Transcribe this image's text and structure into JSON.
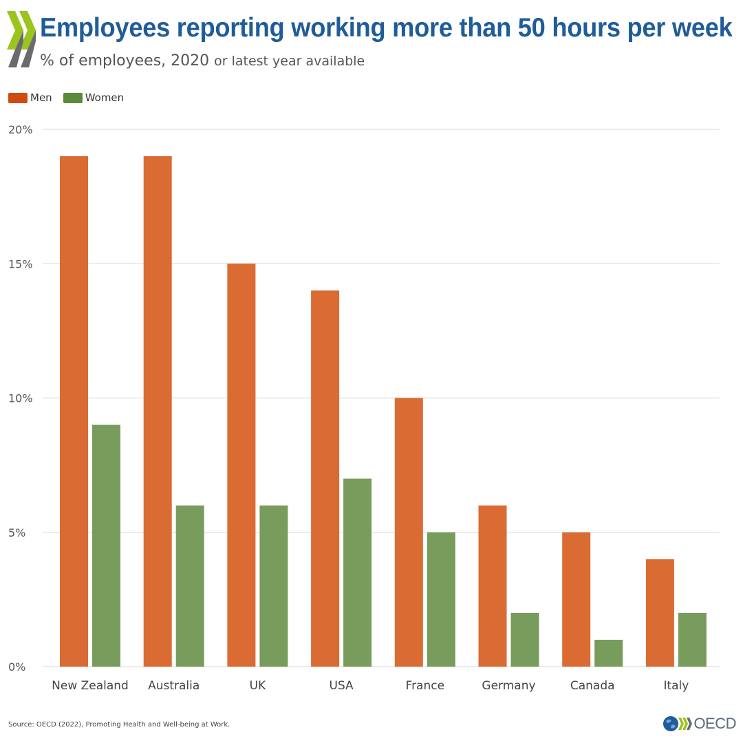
{
  "header": {
    "title": "Employees reporting working more than 50 hours per week",
    "subtitle_main": "% of employees, 2020",
    "subtitle_secondary": "or latest year available"
  },
  "legend": {
    "men_label": "Men",
    "women_label": "Women"
  },
  "footer": {
    "source": "Source: OECD (2022), Promoting Health and Well-being at Work.",
    "logo_text": "OECD"
  },
  "colors": {
    "men": "#d96b33",
    "women": "#789c5c",
    "men_legend": "#d14b10",
    "women_legend": "#5a8a3c",
    "title": "#1f5c99",
    "grid": "#e6e6e6",
    "chevron_light": "#9cc41e",
    "chevron_dark": "#6b6b6b"
  },
  "chart_data": {
    "type": "bar",
    "title": "Employees reporting working more than 50 hours per week",
    "subtitle": "% of employees, 2020 or latest year available",
    "xlabel": "",
    "ylabel": "",
    "categories": [
      "New Zealand",
      "Australia",
      "UK",
      "USA",
      "France",
      "Germany",
      "Canada",
      "Italy"
    ],
    "series": [
      {
        "name": "Men",
        "values": [
          19,
          19,
          15,
          14,
          10,
          6,
          5,
          4
        ]
      },
      {
        "name": "Women",
        "values": [
          9,
          6,
          6,
          7,
          5,
          2,
          1,
          2
        ]
      }
    ],
    "ylim": [
      0,
      20
    ],
    "yticks": [
      0,
      5,
      10,
      15,
      20
    ],
    "ytick_labels": [
      "0%",
      "5%",
      "10%",
      "15%",
      "20%"
    ],
    "grid": true,
    "legend_position": "top-left"
  }
}
